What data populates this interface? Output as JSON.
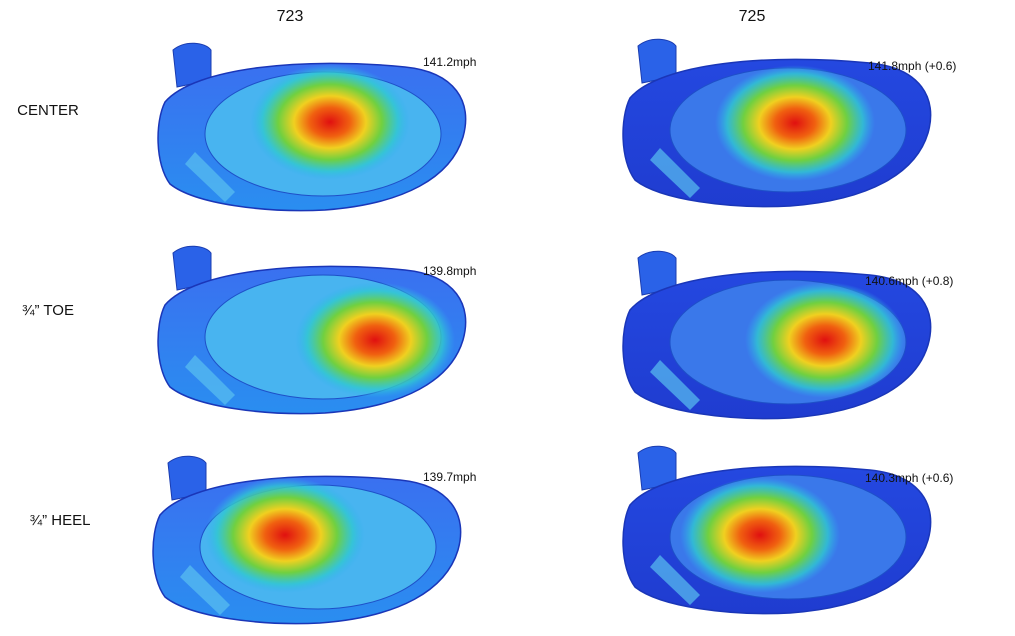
{
  "columns": [
    "723",
    "725"
  ],
  "rows": [
    {
      "label": "CENTER",
      "cells": [
        "141.2mph",
        "141.8mph (+0.6)"
      ]
    },
    {
      "label": "¾” TOE",
      "cells": [
        "139.8mph",
        "140.6mph (+0.8)"
      ]
    },
    {
      "label": "¾” HEEL",
      "cells": [
        "139.7mph",
        "140.3mph (+0.6)"
      ]
    }
  ]
}
